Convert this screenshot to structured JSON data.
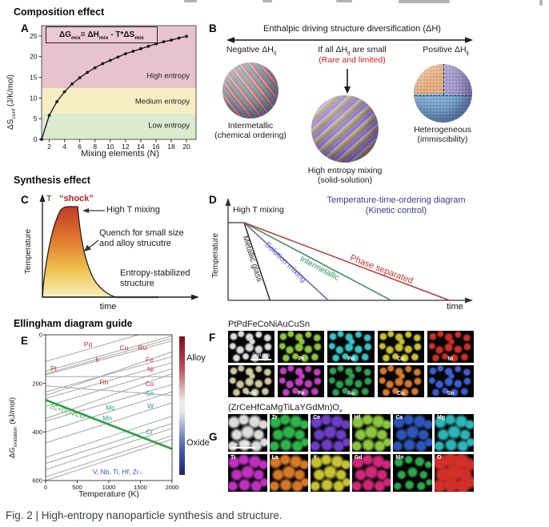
{
  "caption": "Fig. 2 | High-entropy nanoparticle synthesis and structure.",
  "headings": {
    "composition": "Composition effect",
    "synthesis": "Synthesis effect",
    "ellingham": "Ellingham diagram guide"
  },
  "panelA": {
    "letter": "A",
    "equation": [
      [
        "ΔG",
        0
      ],
      [
        "mix",
        1
      ],
      [
        "= ΔH",
        0
      ],
      [
        "mix",
        1
      ],
      [
        " - T*ΔS",
        0
      ],
      [
        "mix",
        1
      ]
    ],
    "ylabel": [
      [
        "ΔS",
        0
      ],
      [
        "conf",
        1
      ],
      [
        " (J/K/mol)",
        0
      ]
    ],
    "xlabel": "Mixing elements (N)",
    "chart": {
      "type": "line",
      "x": [
        1,
        2,
        3,
        4,
        5,
        6,
        7,
        8,
        9,
        10,
        11,
        12,
        13,
        14,
        15,
        16,
        17,
        18,
        19,
        20
      ],
      "y": [
        0,
        5.8,
        9.1,
        11.5,
        13.4,
        14.9,
        16.2,
        17.3,
        18.3,
        19.1,
        19.9,
        20.7,
        21.3,
        21.9,
        22.5,
        23.1,
        23.6,
        24.0,
        24.5,
        24.9
      ],
      "xticks": [
        2,
        4,
        6,
        8,
        10,
        12,
        14,
        16,
        18,
        20
      ],
      "yticks": [
        0,
        5,
        10,
        15,
        20,
        25
      ],
      "xlim": [
        1,
        21.4
      ],
      "ylim": [
        0,
        27.5
      ],
      "line_color": "#151515",
      "regions": [
        {
          "label": "Low entropy",
          "from": 0,
          "to": 6.2,
          "label_v": 3.4,
          "color": "#dcead0"
        },
        {
          "label": "Medium entropy",
          "from": 6.2,
          "to": 12.4,
          "label_v": 9.2,
          "color": "#f6eec2"
        },
        {
          "label": "High entropy",
          "from": 12.4,
          "to": 27.5,
          "label_v": 15.4,
          "color": "#e7c3cd"
        }
      ]
    }
  },
  "panelB": {
    "letter": "B",
    "header": "Enthalpic driving structure diversification (ΔH)",
    "neg": [
      [
        "Negative ΔH",
        0
      ],
      [
        "ij",
        1
      ]
    ],
    "mid": [
      [
        "If all ΔH",
        0
      ],
      [
        "ij",
        1
      ],
      [
        " are small",
        0
      ]
    ],
    "pos": [
      [
        "Positive ΔH",
        0
      ],
      [
        "ij",
        1
      ]
    ],
    "subnote": "(Rare and limited)",
    "subnote_color": "#cc2222",
    "cap_left1": "Intermetallic",
    "cap_left2": "(chemical ordering)",
    "cap_mid1": "High entropy mixing",
    "cap_mid2": "(solid-solution)",
    "cap_right1": "Heterogeneous",
    "cap_right2": "(immiscibility)"
  },
  "panelC": {
    "letter": "C",
    "t_label": "T",
    "shock": "“shock”",
    "shock_color": "#b22222",
    "high": "High T mixing",
    "quench1": "Quench for small size",
    "quench2": "and alloy strucutre",
    "entropy1": "Entropy-stabilized",
    "entropy2": "structure",
    "ylabel": "Temperature",
    "xlabel": "time"
  },
  "panelD": {
    "letter": "D",
    "title1": "Temperature-time-ordering diagram",
    "title2": "(Kinetic control)",
    "title_color": "#3c3c92",
    "high": "High T mixing",
    "ylabel": "Temperature",
    "xlabel": "time",
    "lines": [
      {
        "label": "Metallic glass",
        "color": "#2a2a2a",
        "rel_time": 0.12
      },
      {
        "label": "Solution mixing",
        "color": "#5b5bb0",
        "rel_time": 0.39
      },
      {
        "label": "Intermetallic",
        "color": "#2e8b57",
        "rel_time": 0.68
      },
      {
        "label": "Phase separated",
        "color": "#c23333",
        "rel_time": 0.95
      }
    ]
  },
  "panelE": {
    "letter": "E",
    "ylabel": [
      [
        "ΔG",
        0
      ],
      [
        "oxidation",
        1
      ],
      [
        " (kJ/mol)",
        0
      ]
    ],
    "xlabel": "Temperature (K)",
    "colorbar": {
      "top": "Alloy",
      "bottom": "Oxide"
    },
    "chart": {
      "type": "line",
      "xlim": [
        0,
        2000
      ],
      "ylim": [
        -600,
        0
      ],
      "xticks": [
        0,
        500,
        1000,
        1500,
        2000
      ],
      "yticks": [
        0,
        -200,
        -400,
        -600
      ],
      "line_color": "#9b9b9b",
      "lines": [
        {
          "element": "Pd",
          "x": [
            0,
            2000
          ],
          "y": [
            -110,
            40
          ]
        },
        {
          "element": "Ir",
          "x": [
            0,
            2000
          ],
          "y": [
            -150,
            -5
          ]
        },
        {
          "element": "Cu",
          "x": [
            0,
            2000
          ],
          "y": [
            -165,
            -25
          ]
        },
        {
          "element": "Ru",
          "x": [
            0,
            2000
          ],
          "y": [
            -160,
            -15
          ]
        },
        {
          "element": "Fe",
          "x": [
            0,
            2000
          ],
          "y": [
            -250,
            -70
          ]
        },
        {
          "element": "Ni",
          "x": [
            0,
            2000
          ],
          "y": [
            -235,
            -90
          ]
        },
        {
          "element": "Pt",
          "x": [
            0,
            2000
          ],
          "y": [
            -172,
            -172
          ]
        },
        {
          "element": "Rh",
          "x": [
            0,
            2000
          ],
          "y": [
            -210,
            -250
          ]
        },
        {
          "element": "Co",
          "x": [
            0,
            2000
          ],
          "y": [
            -262,
            -115
          ]
        },
        {
          "element": "Sn",
          "x": [
            0,
            2000
          ],
          "y": [
            -295,
            -140
          ]
        },
        {
          "element": "W",
          "x": [
            0,
            2000
          ],
          "y": [
            -345,
            -160
          ]
        },
        {
          "element": "Mo",
          "x": [
            0,
            2000
          ],
          "y": [
            -355,
            -205
          ]
        },
        {
          "element": "Mn",
          "x": [
            0,
            2000
          ],
          "y": [
            -400,
            -235
          ]
        },
        {
          "element": "Cr",
          "x": [
            0,
            2000
          ],
          "y": [
            -445,
            -280
          ]
        },
        {
          "element": "V",
          "x": [
            0,
            2000
          ],
          "y": [
            -505,
            -335
          ]
        },
        {
          "element": "Nb",
          "x": [
            0,
            2000
          ],
          "y": [
            -530,
            -365
          ]
        },
        {
          "element": "Ti",
          "x": [
            0,
            2000
          ],
          "y": [
            -555,
            -385
          ]
        },
        {
          "element": "Zr",
          "x": [
            0,
            2000
          ],
          "y": [
            -585,
            -415
          ]
        },
        {
          "element": "Hf",
          "x": [
            0,
            2000
          ],
          "y": [
            -600,
            -430
          ]
        }
      ],
      "carbon": {
        "label": [
          [
            "2C+O",
            0
          ],
          [
            "2",
            1
          ],
          [
            "=2CO",
            0
          ]
        ],
        "color": "#2d9e44",
        "x": [
          0,
          2000
        ],
        "y": [
          -268,
          -470
        ],
        "label_T": 60,
        "label_G": -302,
        "rotate": 17
      },
      "labels": [
        {
          "text": "Pd",
          "color": "#c23333",
          "T": 671,
          "G": -50
        },
        {
          "text": "Cu",
          "color": "#c23333",
          "T": 1240,
          "G": -63
        },
        {
          "text": "Ru",
          "color": "#c23333",
          "T": 1531,
          "G": -63
        },
        {
          "text": "Ir",
          "color": "#c23333",
          "T": 822,
          "G": -112
        },
        {
          "text": "Fe",
          "color": "#c23333",
          "T": 1645,
          "G": -112
        },
        {
          "text": "Pt",
          "color": "#c23333",
          "T": 127,
          "G": -148
        },
        {
          "text": "Ni",
          "color": "#c23333",
          "T": 1658,
          "G": -152
        },
        {
          "text": "Rh",
          "color": "#c23333",
          "T": 924,
          "G": -204
        },
        {
          "text": "Co",
          "color": "#c23333",
          "T": 1645,
          "G": -211
        },
        {
          "text": "Sn",
          "color": "#2a9d8f",
          "T": 1645,
          "G": -251
        },
        {
          "text": "Mo",
          "color": "#2a9d8f",
          "T": 1025,
          "G": -310
        },
        {
          "text": "W",
          "color": "#2a9d8f",
          "T": 1658,
          "G": -303
        },
        {
          "text": "Mn",
          "color": "#2a9d8f",
          "T": 975,
          "G": -353
        },
        {
          "text": "Cr",
          "color": "#2a9d8f",
          "T": 1645,
          "G": -409
        },
        {
          "text": "V, Nb, Ti, Hf, Zr↓",
          "color": "#3a55b4",
          "T": 1139,
          "G": -574
        }
      ]
    }
  },
  "panelF": {
    "letter": "F",
    "title": "PtPdFeCoNiAuCuSn",
    "cells": [
      {
        "label": "",
        "color": "#dcdcdc",
        "tem": true,
        "scalebar": "500 nm"
      },
      {
        "label": "Pt",
        "color": "#8dc63f"
      },
      {
        "label": "Pd",
        "color": "#35c4c8"
      },
      {
        "label": "Co",
        "color": "#c8c232"
      },
      {
        "label": "Ni",
        "color": "#cc2e28"
      },
      {
        "label": "mix",
        "color": "#cfc9a0"
      },
      {
        "label": "Fe",
        "color": "#c040c0"
      },
      {
        "label": "Au",
        "color": "#2f9e4f"
      },
      {
        "label": "Cu",
        "color": "#d57830"
      },
      {
        "label": "Sn",
        "color": "#3c5ed0"
      }
    ]
  },
  "panelG": {
    "letter": "G",
    "title": [
      [
        "(ZrCeHfCaMgTiLaYGdMn)O",
        0
      ],
      [
        "x",
        1
      ]
    ],
    "cells": [
      {
        "label": "",
        "color": "#dcdcdc",
        "tem": true,
        "scalebar": "20 nm"
      },
      {
        "label": "Zr",
        "color": "#2eb34a"
      },
      {
        "label": "Ce",
        "color": "#6a3fc4"
      },
      {
        "label": "Hf",
        "color": "#8cc63f"
      },
      {
        "label": "Ca",
        "color": "#2d55b8"
      },
      {
        "label": "Mg",
        "color": "#2ab5b8"
      },
      {
        "label": "Ti",
        "color": "#c030c0"
      },
      {
        "label": "La",
        "color": "#d57828"
      },
      {
        "label": "Y",
        "color": "#c8c232"
      },
      {
        "label": "Gd",
        "color": "#d02878"
      },
      {
        "label": "Mn",
        "color": "#2aa84a",
        "scale": 0.75
      },
      {
        "label": "O",
        "color": "#d03028",
        "scale": 1.35
      }
    ]
  }
}
